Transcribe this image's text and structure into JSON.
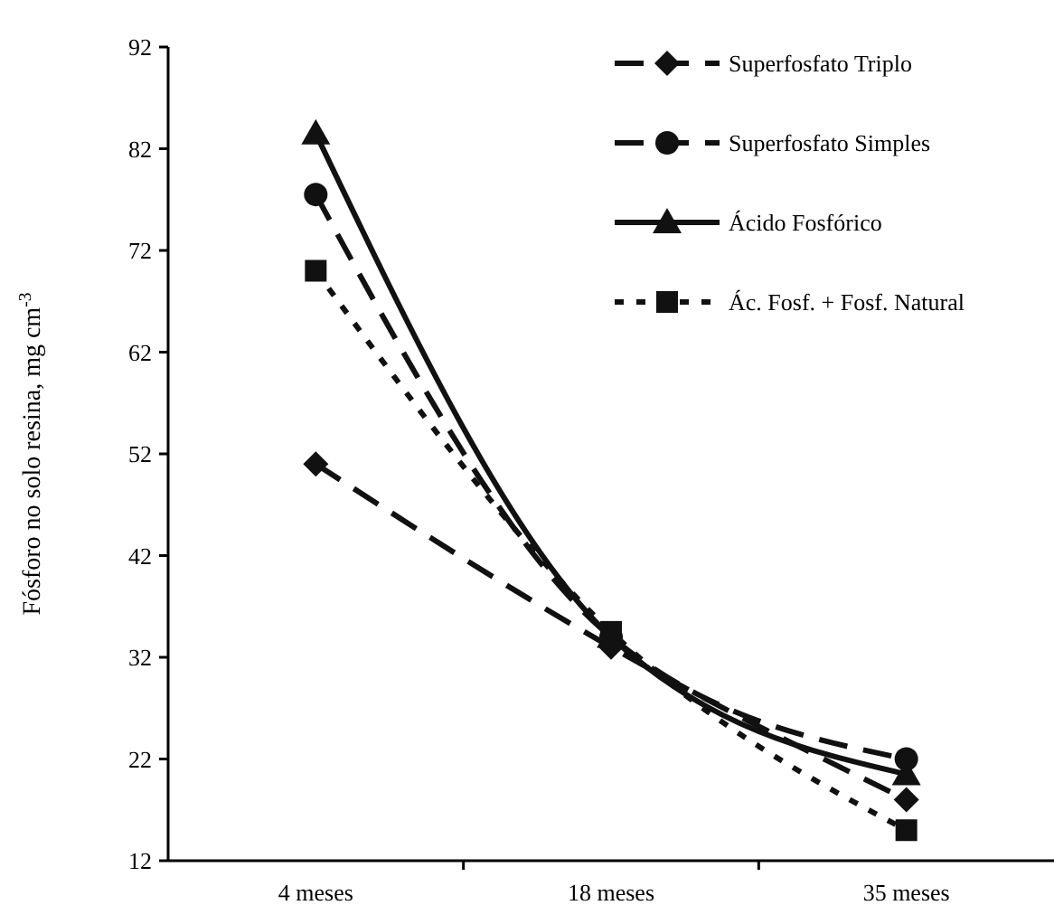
{
  "chart_data": {
    "type": "line",
    "ylabel": "Fósforo no solo resina, mg cm$^{-3}$",
    "categories": [
      "4 meses",
      "18 meses",
      "35 meses"
    ],
    "ylim": [
      12,
      92
    ],
    "yticks": [
      12,
      22,
      32,
      42,
      52,
      62,
      72,
      82,
      92
    ],
    "grid": false,
    "legend": "top right",
    "series": [
      {
        "name": "Superfosfato Triplo",
        "color": "#111111",
        "marker": "diamond",
        "line_style": "dashed",
        "values": [
          51,
          33,
          18
        ]
      },
      {
        "name": "Superfosfato Simples",
        "color": "#111111",
        "marker": "circle",
        "line_style": "dashed",
        "values": [
          77.5,
          34,
          22
        ]
      },
      {
        "name": "Ácido Fosfórico",
        "color": "#111111",
        "marker": "triangle",
        "line_style": "solid",
        "values": [
          83.5,
          34,
          20.5
        ]
      },
      {
        "name": "Ác. Fosf. + Fosf. Natural",
        "color": "#111111",
        "marker": "square",
        "line_style": "dotted",
        "values": [
          70,
          34.5,
          15
        ]
      }
    ]
  }
}
